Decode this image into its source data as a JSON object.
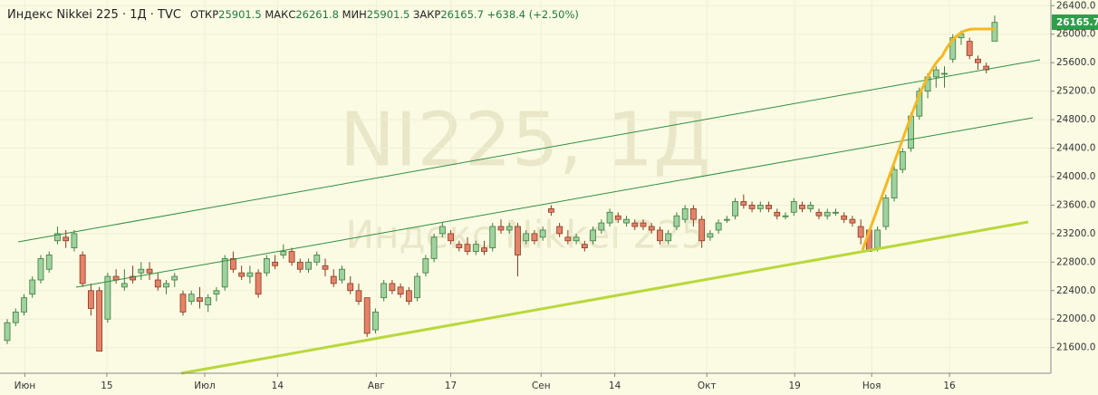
{
  "header": {
    "symbol": "Индекс Nikkei 225 · 1Д · TVC",
    "open_label": "ОТКР",
    "open": 25901.5,
    "high_label": "МАКС",
    "high": 26261.8,
    "low_label": "МИН",
    "low": 25901.5,
    "close_label": "ЗАКР",
    "close": 26165.7,
    "change": "+638.4",
    "change_pct": "(+2.50%)"
  },
  "chart_data": {
    "type": "candlestick",
    "watermark_symbol": "NI225, 1Д",
    "watermark_name": "Индекс Nikkei 225",
    "up_color": "#9fd29f",
    "down_color": "#e4826a",
    "grid": true,
    "ylim": [
      21240,
      26480
    ],
    "yticks": [
      {
        "value": 21600,
        "label": "21600.0"
      },
      {
        "value": 22000,
        "label": "22000.0"
      },
      {
        "value": 22400,
        "label": "22400.0"
      },
      {
        "value": 22800,
        "label": "22800.0"
      },
      {
        "value": 23200,
        "label": "23200.0"
      },
      {
        "value": 23600,
        "label": "23600.0"
      },
      {
        "value": 24000,
        "label": "24000.0"
      },
      {
        "value": 24400,
        "label": "24400.0"
      },
      {
        "value": 24800,
        "label": "24800.0"
      },
      {
        "value": 25200,
        "label": "25200.0"
      },
      {
        "value": 25600,
        "label": "25600.0"
      },
      {
        "value": 26000,
        "label": "26000.0"
      },
      {
        "value": 26400,
        "label": "26400.0"
      }
    ],
    "xlim": [
      -0.87,
      124.72
    ],
    "xticks": [
      {
        "value": 2.1,
        "label": "Июн"
      },
      {
        "value": 11.9,
        "label": "15"
      },
      {
        "value": 23.6,
        "label": "Июл"
      },
      {
        "value": 32.3,
        "label": "14"
      },
      {
        "value": 44.1,
        "label": "Авг"
      },
      {
        "value": 53.0,
        "label": "17"
      },
      {
        "value": 63.8,
        "label": "Сен"
      },
      {
        "value": 72.6,
        "label": "14"
      },
      {
        "value": 83.6,
        "label": "Окт"
      },
      {
        "value": 94.1,
        "label": "19"
      },
      {
        "value": 103.3,
        "label": "Ноя"
      },
      {
        "value": 112.6,
        "label": "16"
      }
    ],
    "ohlc": [
      [
        21700,
        22000,
        21650,
        21950
      ],
      [
        21950,
        22150,
        21900,
        22100
      ],
      [
        22100,
        22350,
        22050,
        22300
      ],
      [
        22350,
        22600,
        22300,
        22550
      ],
      [
        22550,
        22900,
        22500,
        22850
      ],
      [
        22700,
        22950,
        22650,
        22900
      ],
      [
        23100,
        23300,
        23050,
        23200
      ],
      [
        23150,
        23250,
        23000,
        23100
      ],
      [
        23000,
        23250,
        22950,
        23200
      ],
      [
        22900,
        22950,
        22450,
        22500
      ],
      [
        22400,
        22500,
        22050,
        22150
      ],
      [
        22400,
        22450,
        21550,
        21550
      ],
      [
        22000,
        22650,
        21950,
        22600
      ],
      [
        22600,
        22700,
        22500,
        22550
      ],
      [
        22450,
        22700,
        22400,
        22500
      ],
      [
        22600,
        22750,
        22500,
        22550
      ],
      [
        22650,
        22800,
        22550,
        22700
      ],
      [
        22700,
        22800,
        22550,
        22650
      ],
      [
        22550,
        22650,
        22400,
        22450
      ],
      [
        22450,
        22550,
        22350,
        22500
      ],
      [
        22550,
        22650,
        22450,
        22600
      ],
      [
        22350,
        22400,
        22050,
        22100
      ],
      [
        22250,
        22400,
        22200,
        22350
      ],
      [
        22300,
        22450,
        22150,
        22250
      ],
      [
        22200,
        22350,
        22100,
        22300
      ],
      [
        22350,
        22450,
        22250,
        22400
      ],
      [
        22450,
        22900,
        22400,
        22850
      ],
      [
        22850,
        22950,
        22650,
        22700
      ],
      [
        22650,
        22750,
        22550,
        22600
      ],
      [
        22600,
        22750,
        22500,
        22650
      ],
      [
        22650,
        22700,
        22300,
        22350
      ],
      [
        22650,
        22900,
        22600,
        22850
      ],
      [
        22800,
        22900,
        22700,
        22750
      ],
      [
        22900,
        23050,
        22850,
        22950
      ],
      [
        22950,
        23000,
        22750,
        22800
      ],
      [
        22800,
        22850,
        22650,
        22700
      ],
      [
        22700,
        22850,
        22650,
        22800
      ],
      [
        22800,
        22950,
        22750,
        22900
      ],
      [
        22750,
        22850,
        22600,
        22700
      ],
      [
        22600,
        22700,
        22450,
        22500
      ],
      [
        22550,
        22750,
        22500,
        22700
      ],
      [
        22500,
        22600,
        22350,
        22400
      ],
      [
        22400,
        22500,
        22200,
        22250
      ],
      [
        22300,
        22300,
        21750,
        21800
      ],
      [
        21850,
        22150,
        21800,
        22100
      ],
      [
        22300,
        22550,
        22250,
        22500
      ],
      [
        22500,
        22550,
        22350,
        22400
      ],
      [
        22450,
        22500,
        22300,
        22350
      ],
      [
        22400,
        22450,
        22200,
        22250
      ],
      [
        22300,
        22650,
        22250,
        22600
      ],
      [
        22650,
        22900,
        22600,
        22850
      ],
      [
        22850,
        23200,
        22800,
        23150
      ],
      [
        23200,
        23350,
        23150,
        23300
      ],
      [
        23200,
        23250,
        23050,
        23100
      ],
      [
        23050,
        23100,
        22950,
        23000
      ],
      [
        23050,
        23150,
        22900,
        22950
      ],
      [
        22950,
        23100,
        22900,
        23050
      ],
      [
        23000,
        23100,
        22900,
        22950
      ],
      [
        23000,
        23350,
        22950,
        23300
      ],
      [
        23300,
        23400,
        23200,
        23250
      ],
      [
        23250,
        23350,
        23200,
        23300
      ],
      [
        23300,
        23350,
        22600,
        22900
      ],
      [
        23100,
        23250,
        23050,
        23200
      ],
      [
        23200,
        23250,
        23050,
        23100
      ],
      [
        23150,
        23300,
        23100,
        23250
      ],
      [
        23550,
        23600,
        23450,
        23500
      ],
      [
        23300,
        23350,
        23150,
        23200
      ],
      [
        23150,
        23250,
        23050,
        23100
      ],
      [
        23100,
        23200,
        23050,
        23150
      ],
      [
        23050,
        23100,
        22950,
        23000
      ],
      [
        23100,
        23300,
        23050,
        23250
      ],
      [
        23250,
        23400,
        23200,
        23350
      ],
      [
        23350,
        23550,
        23300,
        23500
      ],
      [
        23450,
        23500,
        23350,
        23400
      ],
      [
        23350,
        23450,
        23300,
        23400
      ],
      [
        23350,
        23400,
        23250,
        23300
      ],
      [
        23350,
        23400,
        23250,
        23300
      ],
      [
        23300,
        23350,
        23200,
        23250
      ],
      [
        23250,
        23300,
        23050,
        23100
      ],
      [
        23100,
        23250,
        23050,
        23200
      ],
      [
        23300,
        23500,
        23250,
        23450
      ],
      [
        23400,
        23600,
        23350,
        23550
      ],
      [
        23550,
        23600,
        23300,
        23400
      ],
      [
        23400,
        23450,
        23000,
        23100
      ],
      [
        23150,
        23250,
        23100,
        23200
      ],
      [
        23250,
        23400,
        23200,
        23350
      ],
      [
        23400,
        23450,
        23350,
        23400
      ],
      [
        23450,
        23700,
        23400,
        23650
      ],
      [
        23650,
        23750,
        23550,
        23600
      ],
      [
        23600,
        23650,
        23500,
        23550
      ],
      [
        23550,
        23650,
        23500,
        23600
      ],
      [
        23600,
        23650,
        23500,
        23550
      ],
      [
        23500,
        23550,
        23400,
        23450
      ],
      [
        23450,
        23500,
        23400,
        23450
      ],
      [
        23500,
        23700,
        23450,
        23650
      ],
      [
        23600,
        23650,
        23500,
        23550
      ],
      [
        23550,
        23650,
        23500,
        23600
      ],
      [
        23500,
        23550,
        23400,
        23450
      ],
      [
        23450,
        23550,
        23400,
        23500
      ],
      [
        23500,
        23550,
        23450,
        23500
      ],
      [
        23450,
        23500,
        23350,
        23400
      ],
      [
        23400,
        23450,
        23300,
        23350
      ],
      [
        23300,
        23400,
        23050,
        23150
      ],
      [
        23250,
        23250,
        22950,
        22950
      ],
      [
        23000,
        23300,
        22950,
        23250
      ],
      [
        23300,
        23750,
        23250,
        23700
      ],
      [
        23700,
        24150,
        23650,
        24100
      ],
      [
        24100,
        24400,
        24050,
        24350
      ],
      [
        24400,
        24900,
        24350,
        24850
      ],
      [
        24850,
        25250,
        24800,
        25200
      ],
      [
        25200,
        25450,
        25100,
        25400
      ],
      [
        25400,
        25550,
        25250,
        25500
      ],
      [
        25450,
        25550,
        25250,
        25450
      ],
      [
        25650,
        26000,
        25600,
        25950
      ],
      [
        25950,
        26050,
        25850,
        26000
      ],
      [
        25900,
        25950,
        25650,
        25700
      ],
      [
        25650,
        25700,
        25500,
        25600
      ],
      [
        25550,
        25600,
        25450,
        25500
      ],
      [
        25901.5,
        26261.8,
        25901.5,
        26165.7
      ]
    ]
  }
}
